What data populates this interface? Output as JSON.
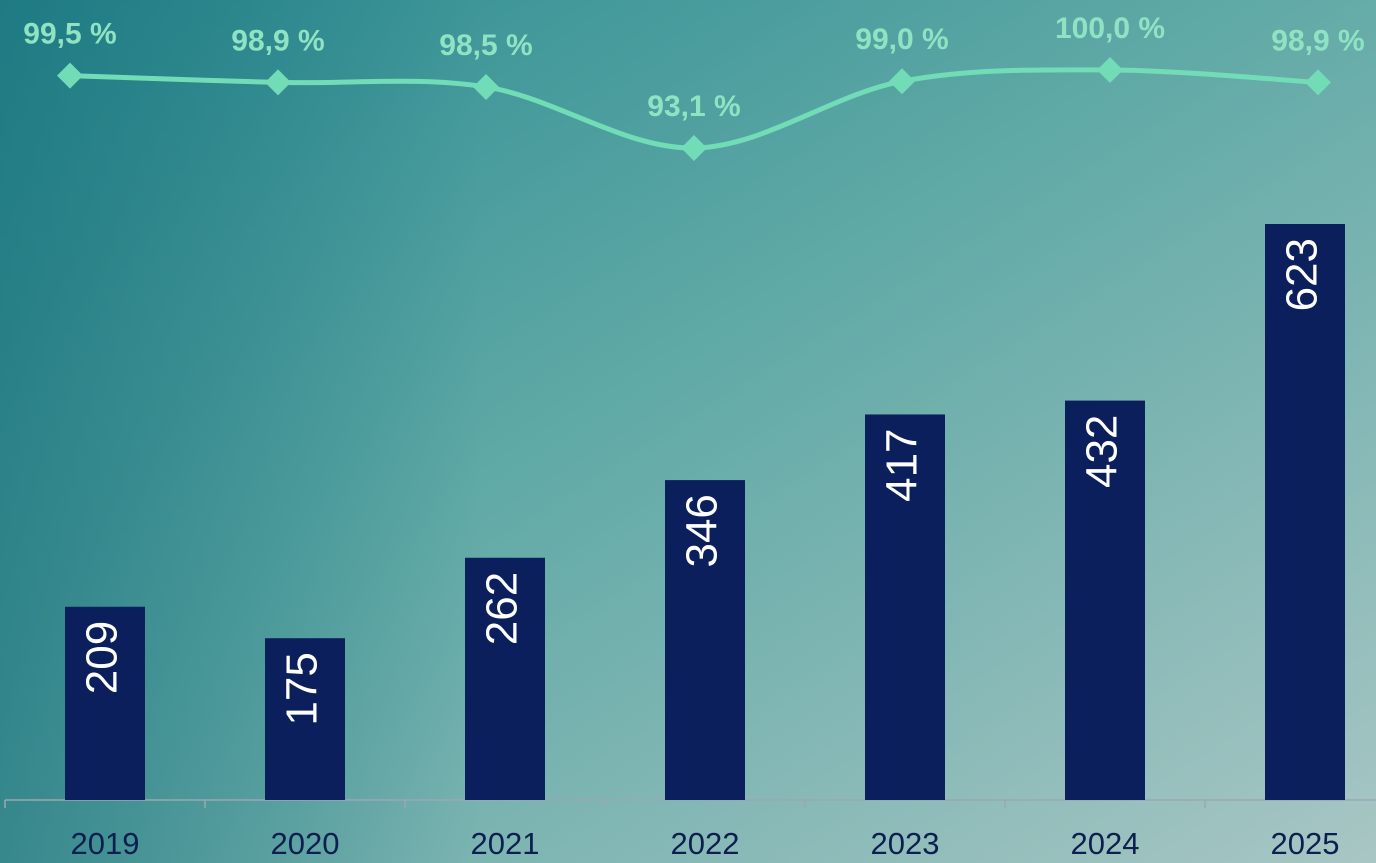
{
  "chart_data": {
    "type": "combo",
    "categories": [
      "2019",
      "2020",
      "2021",
      "2022",
      "2023",
      "2024",
      "2025"
    ],
    "series": [
      {
        "type": "bar",
        "color": "#0b1f5c",
        "values": [
          209,
          175,
          262,
          346,
          417,
          432,
          623
        ]
      },
      {
        "type": "line",
        "axis": "y2",
        "color": "#72dcb6",
        "values": [
          99.5,
          98.9,
          98.5,
          93.1,
          99.0,
          100.0,
          98.9
        ],
        "value_labels": [
          "99,5 %",
          "98,9 %",
          "98,5 %",
          "93,1 %",
          "99,0 %",
          "100,0 %",
          "98,9 %"
        ]
      }
    ]
  }
}
